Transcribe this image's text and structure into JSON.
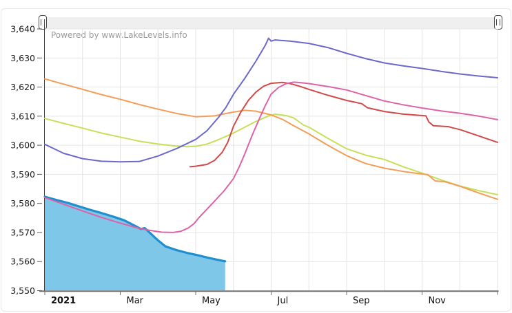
{
  "branding": {
    "powered_by": "Powered by www.LakeLevels.info"
  },
  "scrollbar": {
    "left_grip_icon": "drag-handle",
    "right_grip_icon": "drag-handle",
    "selection": "full-range"
  },
  "chart_data": {
    "type": "line",
    "title": "",
    "legend_position": "none",
    "grid": "on",
    "x_axis": {
      "months": 12,
      "grid_interval": "monthly",
      "tick_labels": [
        {
          "label": "2021",
          "month": 0,
          "bold": true
        },
        {
          "label": "Mar",
          "month": 2,
          "bold": false
        },
        {
          "label": "May",
          "month": 4,
          "bold": false
        },
        {
          "label": "Jul",
          "month": 6,
          "bold": false
        },
        {
          "label": "Sep",
          "month": 8,
          "bold": false
        },
        {
          "label": "Nov",
          "month": 10,
          "bold": false
        }
      ]
    },
    "y_axis": {
      "min": 3550,
      "max": 3640,
      "step": 10,
      "tick_labels": [
        "3,550",
        "3,560",
        "3,570",
        "3,580",
        "3,590",
        "3,600",
        "3,610",
        "3,620",
        "3,630",
        "3,640"
      ]
    },
    "series": [
      {
        "name": "filled-area-current",
        "kind": "area",
        "line_color": "#1f8fce",
        "fill_color": "#7ec7e8",
        "points": [
          [
            0,
            3582.3
          ],
          [
            0.3,
            3581.2
          ],
          [
            0.6,
            3580.2
          ],
          [
            0.9,
            3579.0
          ],
          [
            1.2,
            3577.8
          ],
          [
            1.5,
            3576.7
          ],
          [
            1.8,
            3575.5
          ],
          [
            2.1,
            3574.2
          ],
          [
            2.4,
            3572.2
          ],
          [
            2.55,
            3571.2
          ],
          [
            2.65,
            3571.5
          ],
          [
            2.8,
            3569.7
          ],
          [
            3.0,
            3567.3
          ],
          [
            3.2,
            3565.2
          ],
          [
            3.5,
            3563.9
          ],
          [
            3.8,
            3562.9
          ],
          [
            4.05,
            3562.2
          ],
          [
            4.3,
            3561.4
          ],
          [
            4.55,
            3560.7
          ],
          [
            4.7,
            3560.3
          ],
          [
            4.78,
            3560.1
          ]
        ]
      },
      {
        "name": "line-yellow-green",
        "kind": "line",
        "line_color": "#c6e058",
        "points": [
          [
            0,
            3609.2
          ],
          [
            0.5,
            3607.5
          ],
          [
            1,
            3605.9
          ],
          [
            1.5,
            3604.2
          ],
          [
            2,
            3602.8
          ],
          [
            2.5,
            3601.4
          ],
          [
            3,
            3600.4
          ],
          [
            3.5,
            3599.7
          ],
          [
            3.8,
            3599.5
          ],
          [
            4,
            3599.6
          ],
          [
            4.3,
            3600.4
          ],
          [
            4.6,
            3601.9
          ],
          [
            5,
            3604.2
          ],
          [
            5.3,
            3606.2
          ],
          [
            5.6,
            3608.2
          ],
          [
            5.9,
            3609.9
          ],
          [
            6.1,
            3610.7
          ],
          [
            6.4,
            3610.2
          ],
          [
            6.6,
            3609.4
          ],
          [
            6.85,
            3607.0
          ],
          [
            7,
            3606.2
          ],
          [
            7.5,
            3602.4
          ],
          [
            8,
            3598.8
          ],
          [
            8.5,
            3596.6
          ],
          [
            9,
            3595.1
          ],
          [
            9.5,
            3592.6
          ],
          [
            10,
            3590.4
          ],
          [
            10.5,
            3588.1
          ],
          [
            11,
            3586.0
          ],
          [
            11.5,
            3584.4
          ],
          [
            12,
            3583.0
          ]
        ]
      },
      {
        "name": "line-orange",
        "kind": "line",
        "line_color": "#f59d56",
        "points": [
          [
            0,
            3622.8
          ],
          [
            0.5,
            3621.0
          ],
          [
            1,
            3619.2
          ],
          [
            1.5,
            3617.4
          ],
          [
            2,
            3615.8
          ],
          [
            2.5,
            3614.0
          ],
          [
            3,
            3612.4
          ],
          [
            3.5,
            3610.9
          ],
          [
            4,
            3609.8
          ],
          [
            4.5,
            3610.1
          ],
          [
            4.8,
            3610.9
          ],
          [
            5,
            3611.4
          ],
          [
            5.3,
            3612.0
          ],
          [
            5.6,
            3611.7
          ],
          [
            6,
            3610.4
          ],
          [
            6.3,
            3608.9
          ],
          [
            6.6,
            3606.7
          ],
          [
            7,
            3603.9
          ],
          [
            7.5,
            3600.0
          ],
          [
            8,
            3596.4
          ],
          [
            8.5,
            3593.7
          ],
          [
            9,
            3592.1
          ],
          [
            9.5,
            3591.0
          ],
          [
            10,
            3590.1
          ],
          [
            10.15,
            3589.9
          ],
          [
            10.35,
            3587.7
          ],
          [
            10.6,
            3587.5
          ],
          [
            11,
            3585.9
          ],
          [
            11.5,
            3583.6
          ],
          [
            12,
            3581.4
          ]
        ]
      },
      {
        "name": "line-red",
        "kind": "line",
        "line_color": "#d04a4a",
        "points": [
          [
            3.85,
            3592.6
          ],
          [
            4,
            3592.8
          ],
          [
            4.3,
            3593.4
          ],
          [
            4.5,
            3594.8
          ],
          [
            4.7,
            3597.5
          ],
          [
            4.85,
            3601.0
          ],
          [
            5,
            3606.5
          ],
          [
            5.2,
            3611.5
          ],
          [
            5.4,
            3615.5
          ],
          [
            5.6,
            3618.3
          ],
          [
            5.8,
            3620.3
          ],
          [
            6,
            3621.3
          ],
          [
            6.3,
            3621.6
          ],
          [
            6.5,
            3621.2
          ],
          [
            6.75,
            3620.3
          ],
          [
            7,
            3619.2
          ],
          [
            7.5,
            3617.2
          ],
          [
            8,
            3615.4
          ],
          [
            8.4,
            3614.3
          ],
          [
            8.55,
            3612.9
          ],
          [
            9,
            3611.6
          ],
          [
            9.5,
            3610.7
          ],
          [
            10.1,
            3610.1
          ],
          [
            10.18,
            3608.0
          ],
          [
            10.3,
            3606.7
          ],
          [
            10.7,
            3606.4
          ],
          [
            10.8,
            3606.0
          ],
          [
            11,
            3605.4
          ],
          [
            11.5,
            3603.2
          ],
          [
            12,
            3601.0
          ]
        ]
      },
      {
        "name": "line-indigo-blue",
        "kind": "line",
        "line_color": "#6b68cc",
        "points": [
          [
            0,
            3600.3
          ],
          [
            0.5,
            3597.2
          ],
          [
            1,
            3595.4
          ],
          [
            1.5,
            3594.5
          ],
          [
            2,
            3594.3
          ],
          [
            2.5,
            3594.4
          ],
          [
            3,
            3596.3
          ],
          [
            3.5,
            3598.9
          ],
          [
            4,
            3602.0
          ],
          [
            4.3,
            3605.0
          ],
          [
            4.6,
            3609.5
          ],
          [
            4.8,
            3613.0
          ],
          [
            5,
            3617.5
          ],
          [
            5.3,
            3623.0
          ],
          [
            5.6,
            3629.0
          ],
          [
            5.85,
            3634.5
          ],
          [
            5.93,
            3636.8
          ],
          [
            6,
            3635.8
          ],
          [
            6.1,
            3636.2
          ],
          [
            6.5,
            3635.8
          ],
          [
            7,
            3635.0
          ],
          [
            7.5,
            3633.6
          ],
          [
            8,
            3631.6
          ],
          [
            8.5,
            3629.8
          ],
          [
            9,
            3628.3
          ],
          [
            9.5,
            3627.3
          ],
          [
            10,
            3626.4
          ],
          [
            10.5,
            3625.4
          ],
          [
            11,
            3624.5
          ],
          [
            11.5,
            3623.8
          ],
          [
            12,
            3623.2
          ]
        ]
      },
      {
        "name": "line-pink",
        "kind": "line",
        "line_color": "#de62a8",
        "points": [
          [
            0,
            3582.0
          ],
          [
            0.5,
            3579.7
          ],
          [
            1,
            3577.4
          ],
          [
            1.5,
            3575.2
          ],
          [
            2,
            3573.2
          ],
          [
            2.5,
            3571.4
          ],
          [
            2.8,
            3570.7
          ],
          [
            3.1,
            3570.1
          ],
          [
            3.4,
            3570.0
          ],
          [
            3.6,
            3570.4
          ],
          [
            3.8,
            3571.5
          ],
          [
            3.95,
            3573.0
          ],
          [
            4.1,
            3575.3
          ],
          [
            4.3,
            3578.0
          ],
          [
            4.5,
            3580.8
          ],
          [
            4.75,
            3584.3
          ],
          [
            5,
            3588.5
          ],
          [
            5.15,
            3592.5
          ],
          [
            5.3,
            3597.0
          ],
          [
            5.5,
            3603.5
          ],
          [
            5.7,
            3609.5
          ],
          [
            5.85,
            3613.8
          ],
          [
            6,
            3617.6
          ],
          [
            6.2,
            3619.9
          ],
          [
            6.4,
            3621.2
          ],
          [
            6.6,
            3621.7
          ],
          [
            6.8,
            3621.5
          ],
          [
            7,
            3621.2
          ],
          [
            7.5,
            3620.2
          ],
          [
            8,
            3619.0
          ],
          [
            8.5,
            3617.1
          ],
          [
            9,
            3615.2
          ],
          [
            9.5,
            3613.9
          ],
          [
            10,
            3612.8
          ],
          [
            10.5,
            3611.8
          ],
          [
            11,
            3611.0
          ],
          [
            11.5,
            3610.0
          ],
          [
            12,
            3608.8
          ]
        ]
      }
    ]
  }
}
